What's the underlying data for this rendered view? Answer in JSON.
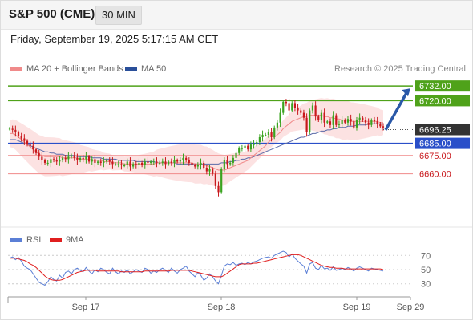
{
  "header": {
    "symbol": "S&P 500 (CME)",
    "timeframe": "30 MIN",
    "datetime": "Friday, September 19, 2025 5:17:15 AM CET"
  },
  "legend": {
    "ma20_label": "MA 20 + Bollinger Bands",
    "ma20_color": "#f08a8a",
    "ma50_label": "MA 50",
    "ma50_color": "#2a4f9a",
    "copyright": "Research © 2025 Trading Central"
  },
  "rsi_legend": {
    "rsi_label": "RSI",
    "rsi_color": "#5b7fd6",
    "ma9_label": "9MA",
    "ma9_color": "#e01f1f"
  },
  "colors": {
    "up_candle": "#3aa31f",
    "down_candle": "#c8181c",
    "resistance": "#4fa21a",
    "support": "#f08a8a",
    "pivot": "#2a4fc9",
    "arrow": "#2a58a8",
    "band": "#fbd6d6"
  },
  "chart_data": [
    {
      "type": "line",
      "title": "",
      "x_ticks": [
        "Sep 17",
        "Sep 18",
        "Sep 19",
        "Sep 29"
      ],
      "ylim": [
        6615,
        6740
      ],
      "series": [
        {
          "name": "Close",
          "values": [
            6697,
            6696,
            6694,
            6691,
            6689,
            6687,
            6684,
            6683,
            6680,
            6677,
            6674,
            6671,
            6669,
            6669,
            6672,
            6671,
            6670,
            6671,
            6673,
            6672,
            6674,
            6675,
            6673,
            6671,
            6673,
            6672,
            6674,
            6670,
            6672,
            6669,
            6670,
            6669,
            6670,
            6671,
            6670,
            6668,
            6668,
            6668,
            6667,
            6667,
            6670,
            6666,
            6668,
            6667,
            6669,
            6667,
            6670,
            6669,
            6670,
            6670,
            6669,
            6669,
            6670,
            6668,
            6670,
            6669,
            6671,
            6670,
            6671,
            6673,
            6671,
            6669,
            6667,
            6666,
            6667,
            6669,
            6665,
            6662,
            6664,
            6660,
            6650,
            6645,
            6664,
            6671,
            6668,
            6669,
            6673,
            6677,
            6681,
            6681,
            6683,
            6680,
            6684,
            6684,
            6686,
            6690,
            6692,
            6692,
            6694,
            6690,
            6698,
            6702,
            6710,
            6719,
            6718,
            6712,
            6718,
            6714,
            6712,
            6710,
            6706,
            6694,
            6712,
            6716,
            6707,
            6704,
            6710,
            6702,
            6703,
            6700,
            6708,
            6700,
            6701,
            6704,
            6702,
            6705,
            6703,
            6698,
            6704,
            6706,
            6704,
            6702,
            6700,
            6704,
            6703,
            6701,
            6699,
            6698
          ]
        },
        {
          "name": "MA 20",
          "values": [
            6693,
            6693,
            6692,
            6690,
            6688,
            6686,
            6684,
            6682,
            6680,
            6678,
            6676,
            6675,
            6674,
            6674,
            6674,
            6674,
            6674,
            6674,
            6673,
            6673,
            6673,
            6673,
            6673,
            6673,
            6672,
            6672,
            6672,
            6672,
            6671,
            6671,
            6671,
            6671,
            6670,
            6670,
            6670,
            6669,
            6669,
            6669,
            6669,
            6668,
            6668,
            6668,
            6668,
            6668,
            6668,
            6668,
            6668,
            6668,
            6668,
            6668,
            6669,
            6669,
            6669,
            6669,
            6669,
            6669,
            6669,
            6669,
            6669,
            6669,
            6669,
            6669,
            6669,
            6668,
            6668,
            6668,
            6667,
            6667,
            6666,
            6665,
            6664,
            6663,
            6663,
            6663,
            6664,
            6665,
            6666,
            6667,
            6668,
            6669,
            6670,
            6671,
            6673,
            6675,
            6677,
            6679,
            6681,
            6683,
            6686,
            6688,
            6690,
            6692,
            6694,
            6697,
            6699,
            6701,
            6703,
            6704,
            6705,
            6706,
            6707,
            6707,
            6708,
            6708,
            6708,
            6708,
            6708,
            6707,
            6707,
            6706,
            6706,
            6705,
            6705,
            6704,
            6704,
            6704,
            6703,
            6703,
            6703,
            6703,
            6703,
            6703,
            6703,
            6703,
            6703,
            6703,
            6702,
            6702
          ]
        },
        {
          "name": "MA 50",
          "values": [
            6688,
            6688,
            6688,
            6687,
            6686,
            6685,
            6684,
            6683,
            6682,
            6681,
            6680,
            6679,
            6678,
            6678,
            6677,
            6677,
            6676,
            6676,
            6676,
            6675,
            6675,
            6675,
            6675,
            6674,
            6674,
            6674,
            6674,
            6674,
            6673,
            6673,
            6673,
            6673,
            6672,
            6672,
            6672,
            6672,
            6672,
            6671,
            6671,
            6671,
            6671,
            6671,
            6671,
            6670,
            6670,
            6670,
            6670,
            6670,
            6670,
            6670,
            6669,
            6669,
            6669,
            6669,
            6669,
            6669,
            6669,
            6668,
            6668,
            6668,
            6668,
            6668,
            6668,
            6668,
            6668,
            6668,
            6668,
            6668,
            6668,
            6668,
            6668,
            6668,
            6669,
            6669,
            6669,
            6670,
            6670,
            6671,
            6671,
            6672,
            6672,
            6673,
            6673,
            6674,
            6675,
            6676,
            6677,
            6678,
            6679,
            6680,
            6681,
            6682,
            6683,
            6684,
            6685,
            6686,
            6687,
            6688,
            6689,
            6690,
            6690,
            6691,
            6692,
            6693,
            6693,
            6694,
            6695,
            6695,
            6696,
            6696,
            6697,
            6697,
            6698,
            6698,
            6698,
            6699,
            6699,
            6699,
            6700,
            6700,
            6700,
            6700,
            6701,
            6701,
            6701,
            6701,
            6701,
            6701
          ]
        }
      ],
      "horizontal_levels": [
        {
          "label": "6732.00",
          "value": 6732,
          "kind": "resistance"
        },
        {
          "label": "6720.00",
          "value": 6720,
          "kind": "resistance"
        },
        {
          "label": "6685.00",
          "value": 6685,
          "kind": "pivot"
        },
        {
          "label": "6675.00",
          "value": 6675,
          "kind": "support"
        },
        {
          "label": "6660.00",
          "value": 6660,
          "kind": "support"
        }
      ],
      "last_price": "6696.25",
      "forecast_arrow": {
        "from": 6696,
        "to": 6732
      }
    },
    {
      "type": "line",
      "title": "",
      "ylim": [
        15,
        85
      ],
      "y_ticks": [
        70,
        50,
        30
      ],
      "series": [
        {
          "name": "RSI",
          "values": [
            66,
            68,
            64,
            67,
            62,
            55,
            52,
            50,
            44,
            38,
            32,
            30,
            28,
            33,
            40,
            36,
            34,
            42,
            38,
            46,
            48,
            44,
            50,
            52,
            49,
            47,
            53,
            48,
            44,
            50,
            47,
            52,
            50,
            46,
            44,
            52,
            47,
            44,
            48,
            46,
            50,
            44,
            47,
            50,
            48,
            46,
            52,
            50,
            45,
            48,
            46,
            50,
            52,
            49,
            46,
            52,
            48,
            45,
            50,
            52,
            55,
            48,
            44,
            40,
            46,
            42,
            35,
            38,
            44,
            40,
            34,
            30,
            42,
            55,
            58,
            57,
            60,
            56,
            58,
            59,
            57,
            60,
            58,
            61,
            62,
            64,
            66,
            67,
            68,
            66,
            70,
            72,
            74,
            76,
            74,
            68,
            72,
            66,
            62,
            58,
            55,
            45,
            58,
            60,
            52,
            50,
            56,
            51,
            52,
            49,
            54,
            49,
            50,
            52,
            50,
            53,
            51,
            48,
            52,
            54,
            52,
            50,
            48,
            52,
            51,
            50,
            49,
            48
          ]
        },
        {
          "name": "9MA",
          "values": [
            66,
            66,
            66,
            65,
            64,
            63,
            61,
            58,
            56,
            53,
            49,
            45,
            41,
            38,
            36,
            35,
            35,
            35,
            36,
            38,
            40,
            42,
            44,
            46,
            47,
            48,
            49,
            49,
            49,
            49,
            48,
            48,
            48,
            48,
            48,
            48,
            48,
            48,
            47,
            47,
            47,
            47,
            47,
            47,
            47,
            47,
            48,
            48,
            48,
            48,
            48,
            48,
            48,
            48,
            48,
            49,
            49,
            49,
            49,
            49,
            49,
            49,
            48,
            47,
            46,
            45,
            44,
            43,
            42,
            41,
            40,
            40,
            40,
            42,
            45,
            48,
            51,
            54,
            57,
            58,
            58,
            58,
            58,
            59,
            59,
            60,
            61,
            62,
            63,
            64,
            65,
            66,
            67,
            68,
            69,
            70,
            71,
            71,
            71,
            70,
            68,
            66,
            64,
            62,
            60,
            58,
            56,
            55,
            54,
            53,
            53,
            52,
            52,
            52,
            51,
            51,
            51,
            51,
            51,
            51,
            51,
            51,
            51,
            51,
            51,
            51,
            51,
            50
          ]
        }
      ]
    }
  ]
}
